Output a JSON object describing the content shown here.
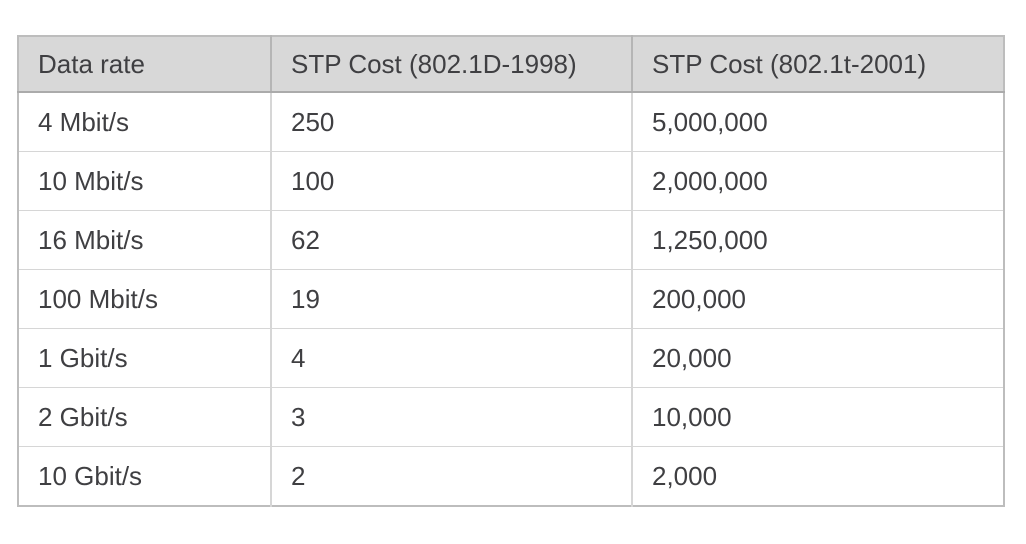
{
  "table": {
    "headers": {
      "data_rate": "Data rate",
      "stp_cost_1998": "STP Cost (802.1D-1998)",
      "stp_cost_2001": "STP Cost (802.1t-2001)"
    },
    "rows": [
      {
        "data_rate": "4 Mbit/s",
        "stp_cost_1998": "250",
        "stp_cost_2001": "5,000,000"
      },
      {
        "data_rate": "10 Mbit/s",
        "stp_cost_1998": "100",
        "stp_cost_2001": "2,000,000"
      },
      {
        "data_rate": "16 Mbit/s",
        "stp_cost_1998": "62",
        "stp_cost_2001": "1,250,000"
      },
      {
        "data_rate": "100 Mbit/s",
        "stp_cost_1998": "19",
        "stp_cost_2001": "200,000"
      },
      {
        "data_rate": "1 Gbit/s",
        "stp_cost_1998": "4",
        "stp_cost_2001": "20,000"
      },
      {
        "data_rate": "2 Gbit/s",
        "stp_cost_1998": "3",
        "stp_cost_2001": "10,000"
      },
      {
        "data_rate": "10 Gbit/s",
        "stp_cost_1998": "2",
        "stp_cost_2001": "2,000"
      }
    ]
  },
  "colors": {
    "page_background": "#ffffff",
    "header_background": "#d8d8d8",
    "outer_border": "#bdbdbd",
    "header_bottom_border": "#ababab",
    "inner_border": "#d6d6d6",
    "text": "#3f3f42"
  }
}
